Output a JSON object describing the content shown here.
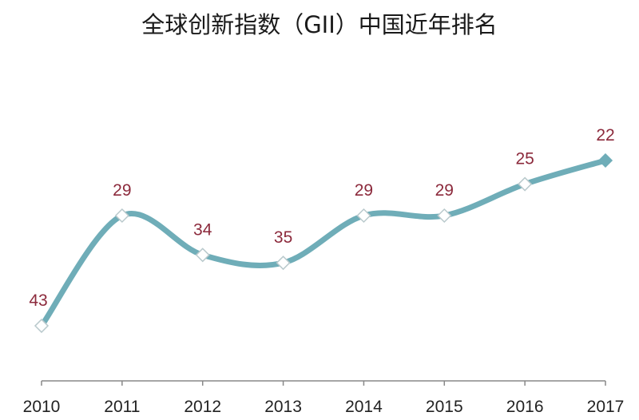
{
  "chart_data": {
    "type": "line",
    "title": "全球创新指数（GII）中国近年排名",
    "categories": [
      "2010",
      "2011",
      "2012",
      "2013",
      "2014",
      "2015",
      "2016",
      "2017"
    ],
    "series": [
      {
        "values": [
          43,
          29,
          34,
          35,
          29,
          29,
          25,
          22
        ]
      }
    ],
    "y_reversed": true,
    "smooth": true,
    "grid": false,
    "legend": "none",
    "data_labels": true,
    "colors": {
      "line": "#6fadb8",
      "label": "#8c2a3c",
      "axis": "#888888",
      "marker_fill": "#ffffff"
    }
  }
}
